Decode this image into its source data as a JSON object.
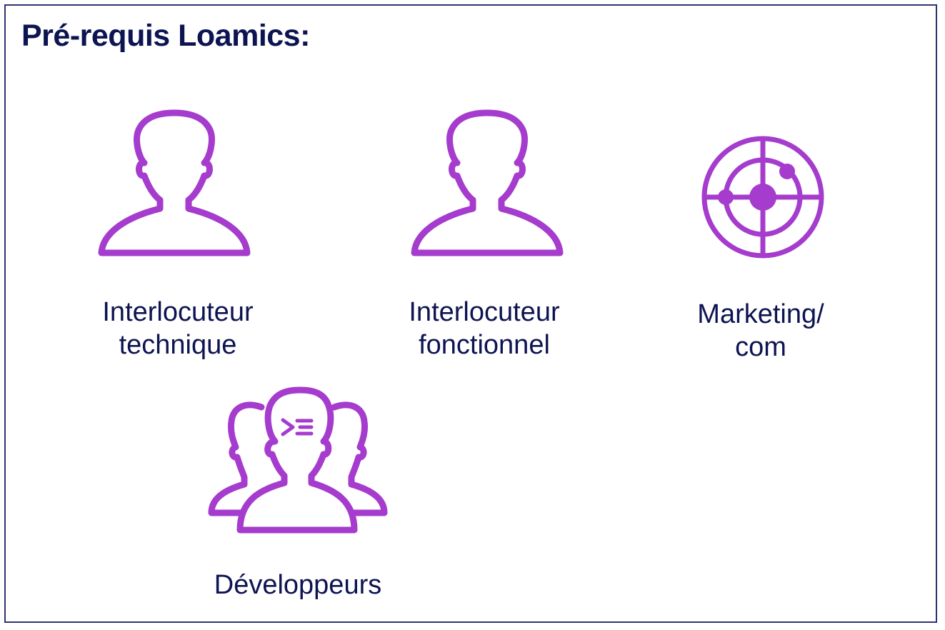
{
  "title": "Pré-requis Loamics:",
  "colors": {
    "accent": "#a53ccd",
    "text": "#0d1452",
    "border": "#2e3470"
  },
  "roles": [
    {
      "icon": "person-icon",
      "line1": "Interlocuteur",
      "line2": "technique"
    },
    {
      "icon": "person-icon",
      "line1": "Interlocuteur",
      "line2": "fonctionnel"
    },
    {
      "icon": "radar-target-icon",
      "line1": "Marketing/",
      "line2": "com"
    },
    {
      "icon": "developer-group-icon",
      "line1": "Développeurs"
    }
  ]
}
